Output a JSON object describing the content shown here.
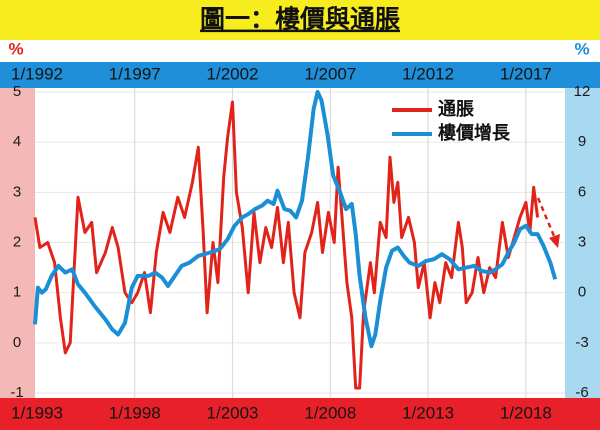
{
  "chart_data": {
    "type": "line",
    "title": "圖一：樓價與通脹",
    "ylabel": "%",
    "y2label": "%",
    "xlim": [
      1992.9,
      2020.0
    ],
    "xticks": [
      {
        "value": 1993,
        "label": "1/1993"
      },
      {
        "value": 1998,
        "label": "1/1998"
      },
      {
        "value": 2003,
        "label": "1/2003"
      },
      {
        "value": 2008,
        "label": "1/2008"
      },
      {
        "value": 2013,
        "label": "1/2013"
      },
      {
        "value": 2018,
        "label": "1/2018"
      }
    ],
    "x2lim": [
      1991.9,
      2019.0
    ],
    "x2ticks": [
      {
        "value": 1992,
        "label": "1/1992"
      },
      {
        "value": 1997,
        "label": "1/1997"
      },
      {
        "value": 2002,
        "label": "1/2002"
      },
      {
        "value": 2007,
        "label": "1/2007"
      },
      {
        "value": 2012,
        "label": "1/2012"
      },
      {
        "value": 2017,
        "label": "1/2017"
      }
    ],
    "ylim": [
      -1,
      5
    ],
    "yticks": [
      -1,
      0,
      1,
      2,
      3,
      4,
      5
    ],
    "y2lim": [
      -6,
      12
    ],
    "y2ticks": [
      -6,
      -3,
      0,
      3,
      6,
      9,
      12
    ],
    "grid": true,
    "legend": "upper right",
    "series": [
      {
        "name": "通脹",
        "color": "#e2231a",
        "axis": "y",
        "x": [
          1992.9,
          1993.15,
          1993.55,
          1993.9,
          1994.2,
          1994.45,
          1994.7,
          1995.1,
          1995.45,
          1995.8,
          1996.05,
          1996.5,
          1996.85,
          1997.15,
          1997.5,
          1997.85,
          1998.15,
          1998.5,
          1998.8,
          1999.1,
          1999.45,
          1999.8,
          2000.2,
          2000.55,
          2000.95,
          2001.25,
          2001.5,
          2001.7,
          2002.0,
          2002.25,
          2002.55,
          2002.75,
          2003.0,
          2003.2,
          2003.5,
          2003.8,
          2004.1,
          2004.4,
          2004.7,
          2005.0,
          2005.3,
          2005.6,
          2005.85,
          2006.15,
          2006.45,
          2006.7,
          2007.05,
          2007.35,
          2007.6,
          2007.9,
          2008.2,
          2008.4,
          2008.6,
          2008.85,
          2009.1,
          2009.3,
          2009.5,
          2009.7,
          2010.05,
          2010.25,
          2010.55,
          2010.85,
          2011.05,
          2011.25,
          2011.45,
          2011.65,
          2012.0,
          2012.3,
          2012.5,
          2012.8,
          2013.1,
          2013.35,
          2013.6,
          2013.9,
          2014.2,
          2014.55,
          2014.75,
          2014.95,
          2015.25,
          2015.55,
          2015.85,
          2016.15,
          2016.45,
          2016.8,
          2017.1,
          2017.4,
          2017.7,
          2018.0,
          2018.2,
          2018.4,
          2018.6
        ],
        "values": [
          2.5,
          1.9,
          2.0,
          1.6,
          0.5,
          -0.2,
          0.0,
          2.9,
          2.2,
          2.4,
          1.4,
          1.8,
          2.3,
          1.9,
          1.0,
          0.8,
          1.0,
          1.4,
          0.6,
          1.8,
          2.6,
          2.2,
          2.9,
          2.5,
          3.2,
          3.9,
          2.2,
          0.6,
          2.0,
          1.2,
          3.3,
          4.1,
          4.8,
          3.0,
          2.3,
          1.0,
          2.6,
          1.6,
          2.3,
          1.9,
          2.7,
          1.6,
          2.4,
          1.0,
          0.5,
          1.8,
          2.2,
          2.8,
          1.8,
          2.6,
          2.0,
          3.5,
          2.5,
          1.2,
          0.5,
          -0.9,
          -0.9,
          0.6,
          1.6,
          1.0,
          2.4,
          2.1,
          3.7,
          2.8,
          3.2,
          2.1,
          2.5,
          2.0,
          1.1,
          1.6,
          0.5,
          1.2,
          0.8,
          1.6,
          1.3,
          2.4,
          1.9,
          0.8,
          1.0,
          1.7,
          1.0,
          1.5,
          1.3,
          2.4,
          1.7,
          2.1,
          2.5,
          2.8,
          2.2,
          3.1,
          2.5
        ]
      },
      {
        "name": "樓價增長",
        "color": "#1b8fd6",
        "axis": "y2",
        "xaxis": "x2",
        "x": [
          1991.9,
          1992.05,
          1992.25,
          1992.45,
          1992.75,
          1993.1,
          1993.45,
          1993.8,
          1994.1,
          1994.45,
          1994.95,
          1995.5,
          1995.85,
          1996.15,
          1996.5,
          1996.85,
          1997.15,
          1997.7,
          1998.05,
          1998.4,
          1998.7,
          1999.05,
          1999.4,
          1999.8,
          2000.25,
          2000.85,
          2001.35,
          2001.75,
          2002.1,
          2002.5,
          2002.8,
          2003.15,
          2003.5,
          2003.8,
          2004.1,
          2004.3,
          2004.65,
          2004.95,
          2005.25,
          2005.55,
          2005.85,
          2006.15,
          2006.35,
          2006.55,
          2006.85,
          2007.15,
          2007.5,
          2007.8,
          2008.1,
          2008.3,
          2008.5,
          2008.8,
          2009.1,
          2009.3,
          2009.55,
          2009.85,
          2010.15,
          2010.45,
          2010.75,
          2011.05,
          2011.5,
          2011.9,
          2012.3,
          2012.7,
          2013.1,
          2013.55,
          2013.95,
          2014.35,
          2014.75,
          2015.15,
          2015.45,
          2015.8,
          2016.1,
          2016.4,
          2016.7,
          2017.0,
          2017.3,
          2017.6,
          2017.9,
          2018.25,
          2018.5
        ],
        "values": [
          -1.9,
          0.3,
          0.0,
          0.2,
          1.0,
          1.6,
          1.2,
          1.4,
          0.5,
          0.0,
          -0.8,
          -1.6,
          -2.2,
          -2.5,
          -1.8,
          0.3,
          1.0,
          1.0,
          1.2,
          0.9,
          0.4,
          1.0,
          1.6,
          1.8,
          2.2,
          2.4,
          2.6,
          3.2,
          4.0,
          4.5,
          4.7,
          5.0,
          5.2,
          5.5,
          5.3,
          6.1,
          5.0,
          4.9,
          4.5,
          5.5,
          8.0,
          11.0,
          12.0,
          11.5,
          9.5,
          7.0,
          6.0,
          5.0,
          5.3,
          3.5,
          1.0,
          -1.5,
          -3.2,
          -2.5,
          -0.5,
          1.5,
          2.5,
          2.7,
          2.2,
          1.8,
          1.6,
          1.9,
          2.0,
          2.3,
          2.0,
          1.4,
          1.5,
          1.6,
          1.3,
          1.2,
          1.4,
          1.7,
          2.4,
          3.0,
          3.8,
          4.0,
          3.5,
          3.5,
          2.8,
          1.8,
          0.8
        ]
      }
    ]
  }
}
